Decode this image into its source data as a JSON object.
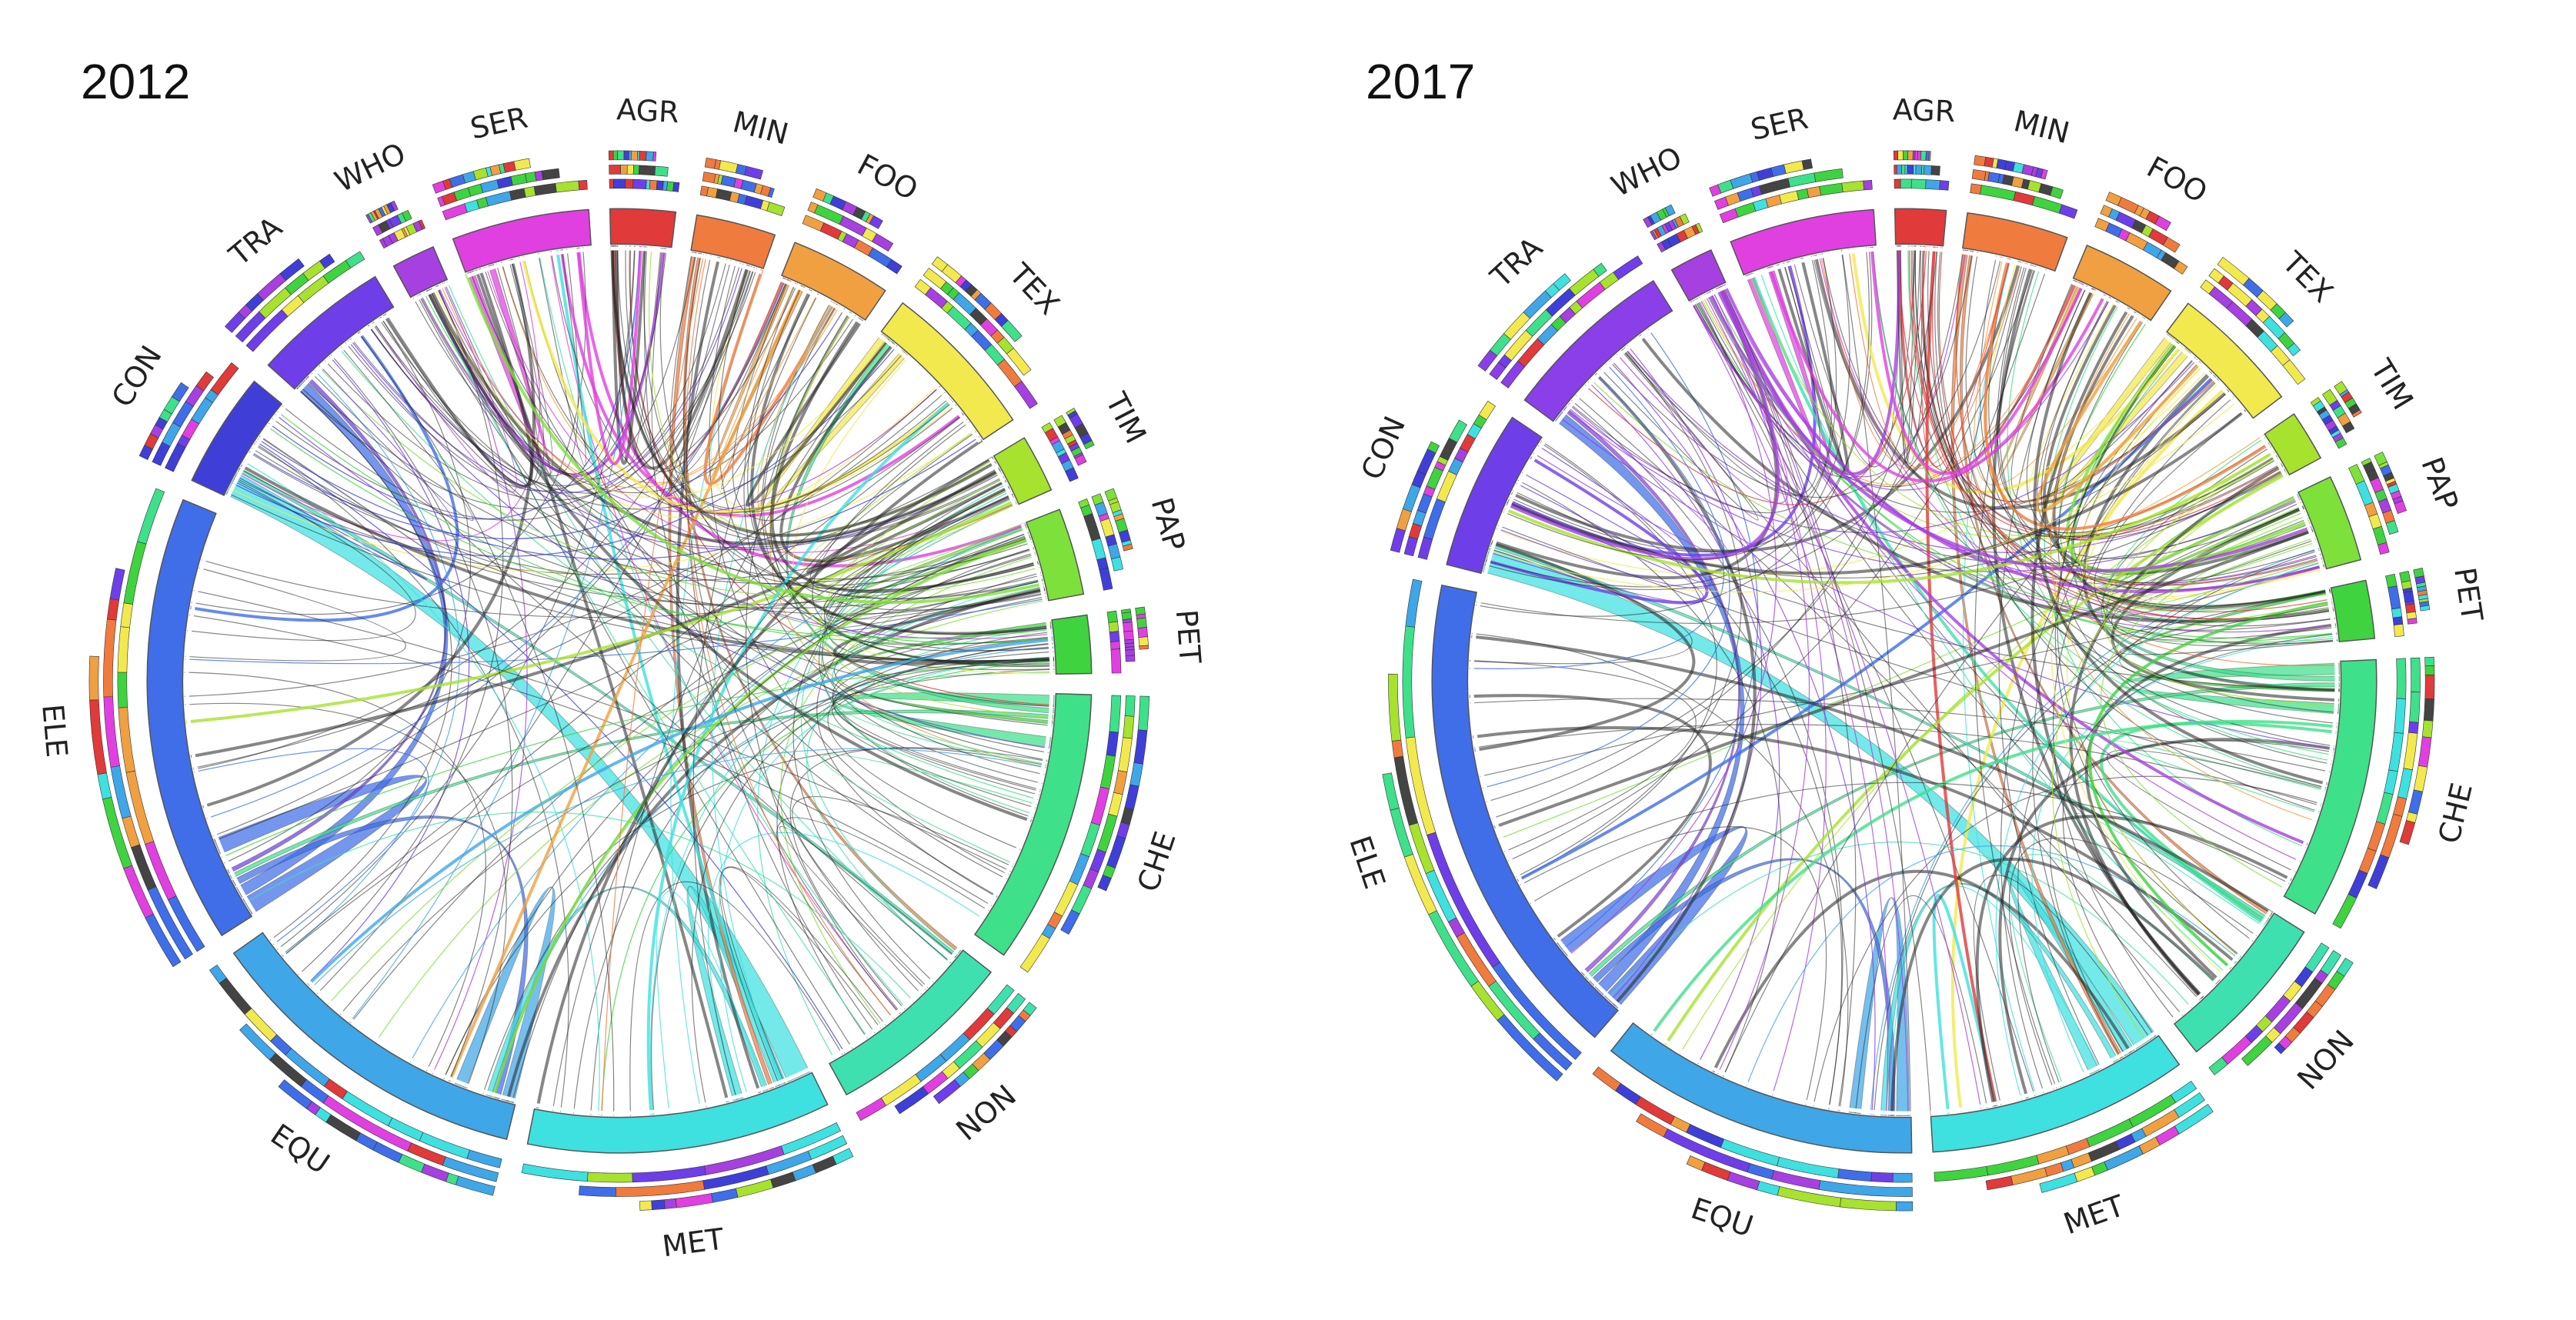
{
  "figure": {
    "panels": [
      {
        "year": "2012",
        "sectors": [
          {
            "code": "AGR",
            "color": "#e03a3a",
            "weight": 0.9
          },
          {
            "code": "MIN",
            "color": "#f07b3f",
            "weight": 1.1
          },
          {
            "code": "FOO",
            "color": "#f0a040",
            "weight": 1.4
          },
          {
            "code": "TEX",
            "color": "#f2e94e",
            "weight": 2.2
          },
          {
            "code": "TIM",
            "color": "#a6e22e",
            "weight": 0.8
          },
          {
            "code": "PAP",
            "color": "#7ee03a",
            "weight": 1.2
          },
          {
            "code": "PET",
            "color": "#3fd33f",
            "weight": 0.8
          },
          {
            "code": "CHE",
            "color": "#3ee08a",
            "weight": 3.8
          },
          {
            "code": "NON",
            "color": "#3ee0b0",
            "weight": 2.6
          },
          {
            "code": "MET",
            "color": "#3ee0e0",
            "weight": 4.2
          },
          {
            "code": "EQU",
            "color": "#3fa6e8",
            "weight": 4.6
          },
          {
            "code": "ELE",
            "color": "#3f6ee8",
            "weight": 6.2
          },
          {
            "code": "CON",
            "color": "#3f3fd8",
            "weight": 1.6
          },
          {
            "code": "TRA",
            "color": "#6e3fe8",
            "weight": 1.9
          },
          {
            "code": "WHO",
            "color": "#a640e0",
            "weight": 0.6
          },
          {
            "code": "SER",
            "color": "#e040e0",
            "weight": 1.9
          }
        ]
      },
      {
        "year": "2017",
        "sectors": [
          {
            "code": "AGR",
            "color": "#e03a3a",
            "weight": 0.7
          },
          {
            "code": "MIN",
            "color": "#f07b3f",
            "weight": 1.4
          },
          {
            "code": "FOO",
            "color": "#f0a040",
            "weight": 1.3
          },
          {
            "code": "TEX",
            "color": "#f2e94e",
            "weight": 1.8
          },
          {
            "code": "TIM",
            "color": "#a6e22e",
            "weight": 0.7
          },
          {
            "code": "PAP",
            "color": "#7ee03a",
            "weight": 1.2
          },
          {
            "code": "PET",
            "color": "#3fd33f",
            "weight": 0.8
          },
          {
            "code": "CHE",
            "color": "#3ee08a",
            "weight": 3.6
          },
          {
            "code": "NON",
            "color": "#3ee0b0",
            "weight": 2.2
          },
          {
            "code": "MET",
            "color": "#3ee0e0",
            "weight": 3.6
          },
          {
            "code": "EQU",
            "color": "#3fa6e8",
            "weight": 4.4
          },
          {
            "code": "ELE",
            "color": "#3f6ee8",
            "weight": 6.8
          },
          {
            "code": "CON",
            "color": "#6e3fe8",
            "weight": 2.2
          },
          {
            "code": "TRA",
            "color": "#8a3fe8",
            "weight": 2.4
          },
          {
            "code": "WHO",
            "color": "#a640e0",
            "weight": 0.6
          },
          {
            "code": "SER",
            "color": "#e040e0",
            "weight": 2.0
          }
        ]
      }
    ],
    "flows": [
      {
        "from": "MET",
        "to": "CON",
        "value": 3.0
      },
      {
        "from": "ELE",
        "to": "ELE",
        "value": 2.2
      },
      {
        "from": "EQU",
        "to": "EQU",
        "value": 1.6
      },
      {
        "from": "MET",
        "to": "MET",
        "value": 1.4
      },
      {
        "from": "CHE",
        "to": "CHE",
        "value": 1.4
      },
      {
        "from": "TEX",
        "to": "TEX",
        "value": 1.0
      },
      {
        "from": "ELE",
        "to": "TRA",
        "value": 1.4
      },
      {
        "from": "MIN",
        "to": "MET",
        "value": 0.5
      },
      {
        "from": "MIN",
        "to": "NON",
        "value": 0.4
      },
      {
        "from": "AGR",
        "to": "FOO",
        "value": 0.4
      },
      {
        "from": "CHE",
        "to": "TEX",
        "value": 0.6
      },
      {
        "from": "ELE",
        "to": "EQU",
        "value": 0.8
      },
      {
        "from": "CHE",
        "to": "ELE",
        "value": 0.5
      },
      {
        "from": "PET",
        "to": "CHE",
        "value": 0.4
      },
      {
        "from": "MET",
        "to": "EQU",
        "value": 0.7
      },
      {
        "from": "SER",
        "to": "SER",
        "value": 0.8
      },
      {
        "from": "NON",
        "to": "CON",
        "value": 0.5
      },
      {
        "from": "PAP",
        "to": "PAP",
        "value": 0.4
      },
      {
        "from": "FOO",
        "to": "FOO",
        "value": 0.5
      },
      {
        "from": "TRA",
        "to": "ELE",
        "value": 0.5
      }
    ]
  }
}
